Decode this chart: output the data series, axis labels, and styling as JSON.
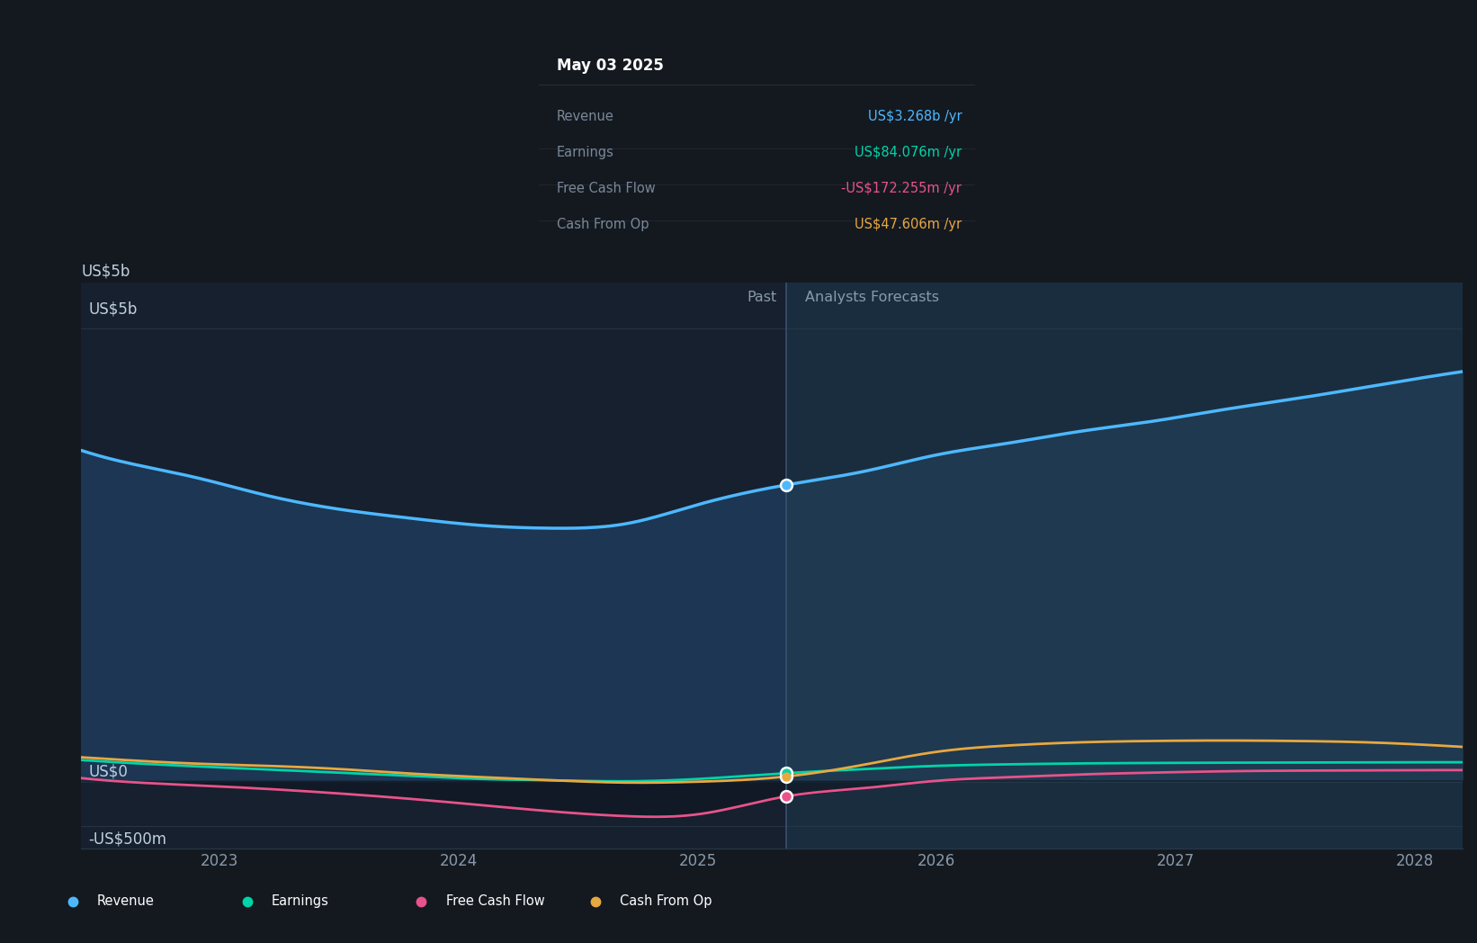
{
  "fig_bg": "#141920",
  "plot_bg_left": "#16202e",
  "plot_bg_right": "#1a2d3e",
  "revenue_color": "#4db8ff",
  "earnings_color": "#00d4a8",
  "fcf_color": "#e8538a",
  "cashop_color": "#e8a840",
  "fill_color_left": "#1e3a5a",
  "fill_color_right": "#213d55",
  "tooltip_bg": "#0a0a0d",
  "tooltip_border": "#2a2a35",
  "divider_color": "#3a5070",
  "zero_line_color": "#667788",
  "grid_color": "#283848",
  "axis_label_color": "#8899aa",
  "text_color_light": "#c0d0e0",
  "past_label": "Past",
  "forecast_label": "Analysts Forecasts",
  "ylabel_5b": "US$5b",
  "ylabel_0": "US$0",
  "ylabel_neg500m": "-US$500m",
  "tooltip_date": "May 03 2025",
  "tooltip_rows": [
    {
      "label": "Revenue",
      "value": "US$3.268b",
      "unit": "/yr",
      "color": "#4db8ff"
    },
    {
      "label": "Earnings",
      "value": "US$84.076m",
      "unit": "/yr",
      "color": "#00d4a8"
    },
    {
      "label": "Free Cash Flow",
      "value": "-US$172.255m",
      "unit": "/yr",
      "color": "#e8538a"
    },
    {
      "label": "Cash From Op",
      "value": "US$47.606m",
      "unit": "/yr",
      "color": "#e8a840"
    }
  ],
  "divider_x": 2025.37,
  "xlim": [
    2022.42,
    2028.2
  ],
  "ylim_top": 5500000000.0,
  "ylim_bottom": -750000000.0,
  "revenue_x": [
    2022.42,
    2022.6,
    2022.9,
    2023.2,
    2023.5,
    2023.8,
    2024.1,
    2024.4,
    2024.7,
    2025.0,
    2025.37,
    2025.7,
    2026.0,
    2026.3,
    2026.6,
    2026.9,
    2027.2,
    2027.5,
    2027.8,
    2028.1,
    2028.2
  ],
  "revenue_y": [
    3650000000.0,
    3520000000.0,
    3350000000.0,
    3150000000.0,
    3000000000.0,
    2900000000.0,
    2820000000.0,
    2790000000.0,
    2840000000.0,
    3050000000.0,
    3268000000.0,
    3420000000.0,
    3600000000.0,
    3730000000.0,
    3860000000.0,
    3970000000.0,
    4100000000.0,
    4220000000.0,
    4350000000.0,
    4480000000.0,
    4520000000.0
  ],
  "earnings_x": [
    2022.42,
    2022.6,
    2022.9,
    2023.2,
    2023.5,
    2023.8,
    2024.1,
    2024.4,
    2024.7,
    2025.0,
    2025.37,
    2025.7,
    2026.0,
    2026.3,
    2026.6,
    2026.9,
    2027.2,
    2027.5,
    2027.8,
    2028.1,
    2028.2
  ],
  "earnings_y": [
    230000000.0,
    200000000.0,
    160000000.0,
    125000000.0,
    90000000.0,
    55000000.0,
    20000000.0,
    5000000.0,
    -5000000.0,
    20000000.0,
    84000000.0,
    130000000.0,
    165000000.0,
    182000000.0,
    192000000.0,
    197000000.0,
    200000000.0,
    202000000.0,
    203000000.0,
    205000000.0,
    205000000.0
  ],
  "fcf_x": [
    2022.42,
    2022.6,
    2022.9,
    2023.2,
    2023.5,
    2023.8,
    2024.1,
    2024.4,
    2024.7,
    2025.0,
    2025.37,
    2025.7,
    2026.0,
    2026.3,
    2026.6,
    2026.9,
    2027.2,
    2027.5,
    2027.8,
    2028.1,
    2028.2
  ],
  "fcf_y": [
    30000000.0,
    -10000000.0,
    -50000000.0,
    -90000000.0,
    -140000000.0,
    -200000000.0,
    -270000000.0,
    -340000000.0,
    -390000000.0,
    -370000000.0,
    -172000000.0,
    -80000000.0,
    0,
    40000000.0,
    70000000.0,
    90000000.0,
    105000000.0,
    112000000.0,
    115000000.0,
    118000000.0,
    118000000.0
  ],
  "cashop_x": [
    2022.42,
    2022.6,
    2022.9,
    2023.2,
    2023.5,
    2023.8,
    2024.1,
    2024.4,
    2024.7,
    2025.0,
    2025.37,
    2025.7,
    2026.0,
    2026.3,
    2026.6,
    2026.9,
    2027.2,
    2027.5,
    2027.8,
    2028.1,
    2028.2
  ],
  "cashop_y": [
    260000000.0,
    230000000.0,
    190000000.0,
    165000000.0,
    130000000.0,
    80000000.0,
    40000000.0,
    5000000.0,
    -20000000.0,
    -10000000.0,
    47600000.0,
    180000000.0,
    320000000.0,
    390000000.0,
    425000000.0,
    440000000.0,
    445000000.0,
    440000000.0,
    425000000.0,
    390000000.0,
    375000000.0
  ],
  "legend_items": [
    {
      "label": "Revenue",
      "color": "#4db8ff"
    },
    {
      "label": "Earnings",
      "color": "#00d4a8"
    },
    {
      "label": "Free Cash Flow",
      "color": "#e8538a"
    },
    {
      "label": "Cash From Op",
      "color": "#e8a840"
    }
  ]
}
